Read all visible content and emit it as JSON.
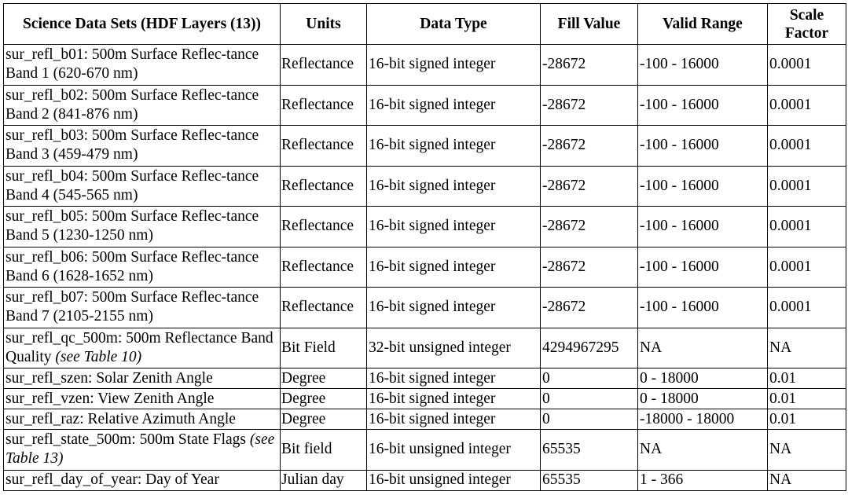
{
  "headers": [
    "Science Data Sets (HDF Layers (13))",
    "Units",
    "Data Type",
    "Fill Value",
    "Valid Range",
    "Scale Factor"
  ],
  "rows": [
    {
      "sds": "sur_refl_b01: 500m Surface Reflec-tance Band 1 (620-670 nm)",
      "units": "Reflectance",
      "type": "16-bit signed integer",
      "fill": "-28672",
      "range": "-100 - 16000",
      "scale": "0.0001"
    },
    {
      "sds": "sur_refl_b02: 500m Surface Reflec-tance Band 2 (841-876 nm)",
      "units": "Reflectance",
      "type": "16-bit signed integer",
      "fill": "-28672",
      "range": "-100 - 16000",
      "scale": "0.0001"
    },
    {
      "sds": "sur_refl_b03: 500m Surface Reflec-tance Band 3 (459-479 nm)",
      "units": "Reflectance",
      "type": "16-bit signed integer",
      "fill": "-28672",
      "range": "-100 - 16000",
      "scale": "0.0001"
    },
    {
      "sds": "sur_refl_b04: 500m Surface Reflec-tance Band 4 (545-565 nm)",
      "units": "Reflectance",
      "type": "16-bit signed integer",
      "fill": "-28672",
      "range": "-100 - 16000",
      "scale": "0.0001"
    },
    {
      "sds": "sur_refl_b05: 500m Surface Reflec-tance Band 5 (1230-1250 nm)",
      "units": "Reflectance",
      "type": "16-bit signed integer",
      "fill": "-28672",
      "range": "-100 - 16000",
      "scale": "0.0001"
    },
    {
      "sds": "sur_refl_b06: 500m Surface Reflec-tance Band 6 (1628-1652 nm)",
      "units": "Reflectance",
      "type": "16-bit signed integer",
      "fill": "-28672",
      "range": "-100 - 16000",
      "scale": "0.0001"
    },
    {
      "sds": "sur_refl_b07: 500m Surface Reflec-tance Band 7 (2105-2155 nm)",
      "units": "Reflectance",
      "type": "16-bit signed integer",
      "fill": "-28672",
      "range": "-100 - 16000",
      "scale": "0.0001"
    },
    {
      "sds": "sur_refl_qc_500m: 500m Reflectance Band Quality",
      "sds_ref": "(see Table 10)",
      "units": "Bit Field",
      "type": "32-bit unsigned integer",
      "fill": "4294967295",
      "range": "NA",
      "scale": "NA"
    },
    {
      "sds": "sur_refl_szen: Solar Zenith Angle",
      "units": "Degree",
      "type": "16-bit signed integer",
      "fill": "0",
      "range": "0 - 18000",
      "scale": "0.01"
    },
    {
      "sds": "sur_refl_vzen: View Zenith Angle",
      "units": "Degree",
      "type": "16-bit signed integer",
      "fill": "0",
      "range": "0 - 18000",
      "scale": "0.01"
    },
    {
      "sds": "sur_refl_raz: Relative Azimuth Angle",
      "units": "Degree",
      "type": "16-bit signed integer",
      "fill": "0",
      "range": "-18000 - 18000",
      "scale": "0.01"
    },
    {
      "sds": "sur_refl_state_500m: 500m State Flags",
      "sds_ref": "(see Table 13)",
      "units": "Bit field",
      "type": "16-bit unsigned integer",
      "fill": "65535",
      "range": "NA",
      "scale": "NA"
    },
    {
      "sds": "sur_refl_day_of_year: Day of Year",
      "units": "Julian day",
      "type": "16-bit unsigned integer",
      "fill": "65535",
      "range": "1 - 366",
      "scale": "NA"
    }
  ]
}
